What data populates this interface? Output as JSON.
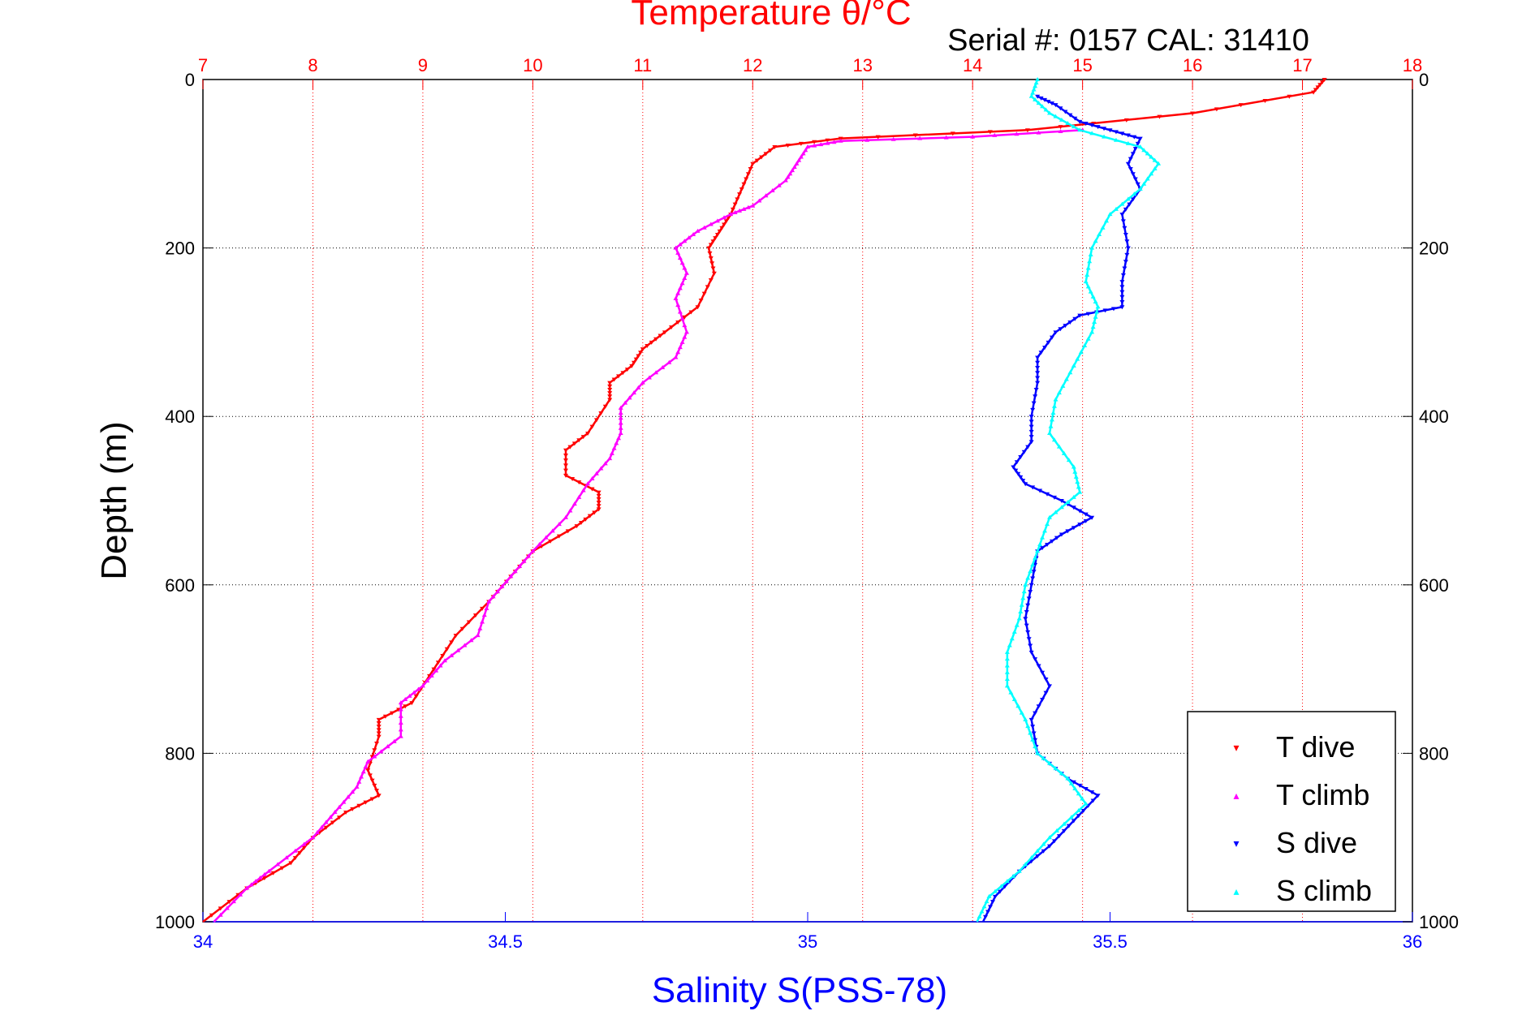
{
  "chart_data": {
    "type": "scatter",
    "title": "Temperature θ/°C",
    "subtitle": "Serial #: 0157  CAL: 31410",
    "ylabel": "Depth (m)",
    "xlabel": "Salinity S(PSS-78)",
    "top_axis": {
      "range": [
        7,
        18
      ],
      "ticks": [
        "7",
        "8",
        "9",
        "10",
        "11",
        "12",
        "13",
        "14",
        "15",
        "16",
        "17",
        "18"
      ],
      "color": "#ff0000"
    },
    "bottom_axis": {
      "range": [
        34,
        36
      ],
      "ticks": [
        "34",
        "34.5",
        "35",
        "35.5",
        "36"
      ],
      "color": "#0000ff"
    },
    "y_axis": {
      "range": [
        0,
        1000
      ],
      "reversed": true,
      "ticks": [
        "0",
        "200",
        "400",
        "600",
        "800",
        "1000"
      ]
    },
    "grid": true,
    "legend_position": "bottom-right",
    "series": [
      {
        "name": "T dive",
        "axis": "temperature",
        "color": "#ff0000",
        "marker": "▾",
        "points": [
          [
            17.2,
            0
          ],
          [
            17.1,
            15
          ],
          [
            16.0,
            40
          ],
          [
            14.5,
            60
          ],
          [
            12.8,
            70
          ],
          [
            12.2,
            80
          ],
          [
            12.0,
            100
          ],
          [
            11.9,
            130
          ],
          [
            11.8,
            160
          ],
          [
            11.7,
            180
          ],
          [
            11.6,
            200
          ],
          [
            11.65,
            230
          ],
          [
            11.5,
            270
          ],
          [
            11.2,
            300
          ],
          [
            11.0,
            320
          ],
          [
            10.9,
            340
          ],
          [
            10.7,
            360
          ],
          [
            10.7,
            380
          ],
          [
            10.5,
            420
          ],
          [
            10.3,
            440
          ],
          [
            10.3,
            470
          ],
          [
            10.6,
            490
          ],
          [
            10.6,
            510
          ],
          [
            10.4,
            530
          ],
          [
            10.0,
            560
          ],
          [
            9.8,
            590
          ],
          [
            9.6,
            620
          ],
          [
            9.3,
            660
          ],
          [
            9.1,
            700
          ],
          [
            8.9,
            740
          ],
          [
            8.6,
            760
          ],
          [
            8.6,
            780
          ],
          [
            8.5,
            820
          ],
          [
            8.6,
            850
          ],
          [
            8.3,
            870
          ],
          [
            8.0,
            900
          ],
          [
            7.8,
            930
          ],
          [
            7.4,
            960
          ],
          [
            7.0,
            1000
          ]
        ]
      },
      {
        "name": "T climb",
        "axis": "temperature",
        "color": "#ff00ff",
        "marker": "▴",
        "points": [
          [
            15.0,
            60
          ],
          [
            14.0,
            68
          ],
          [
            12.8,
            73
          ],
          [
            12.5,
            80
          ],
          [
            12.4,
            100
          ],
          [
            12.3,
            120
          ],
          [
            12.0,
            150
          ],
          [
            11.8,
            160
          ],
          [
            11.5,
            180
          ],
          [
            11.3,
            200
          ],
          [
            11.4,
            230
          ],
          [
            11.3,
            260
          ],
          [
            11.4,
            300
          ],
          [
            11.3,
            330
          ],
          [
            11.0,
            360
          ],
          [
            10.8,
            390
          ],
          [
            10.8,
            420
          ],
          [
            10.7,
            450
          ],
          [
            10.5,
            480
          ],
          [
            10.3,
            520
          ],
          [
            10.0,
            560
          ],
          [
            9.8,
            590
          ],
          [
            9.6,
            620
          ],
          [
            9.5,
            660
          ],
          [
            9.2,
            690
          ],
          [
            9.0,
            720
          ],
          [
            8.8,
            740
          ],
          [
            8.8,
            780
          ],
          [
            8.5,
            810
          ],
          [
            8.4,
            840
          ],
          [
            8.2,
            870
          ],
          [
            8.0,
            900
          ],
          [
            7.6,
            940
          ],
          [
            7.4,
            960
          ],
          [
            7.1,
            1000
          ]
        ]
      },
      {
        "name": "S dive",
        "axis": "salinity",
        "color": "#0000ff",
        "marker": "▾",
        "points": [
          [
            35.38,
            20
          ],
          [
            35.41,
            30
          ],
          [
            35.45,
            50
          ],
          [
            35.5,
            60
          ],
          [
            35.55,
            70
          ],
          [
            35.53,
            100
          ],
          [
            35.55,
            130
          ],
          [
            35.52,
            160
          ],
          [
            35.53,
            200
          ],
          [
            35.52,
            240
          ],
          [
            35.52,
            270
          ],
          [
            35.45,
            280
          ],
          [
            35.41,
            300
          ],
          [
            35.38,
            330
          ],
          [
            35.38,
            360
          ],
          [
            35.37,
            400
          ],
          [
            35.37,
            430
          ],
          [
            35.34,
            460
          ],
          [
            35.36,
            480
          ],
          [
            35.42,
            500
          ],
          [
            35.47,
            520
          ],
          [
            35.42,
            540
          ],
          [
            35.38,
            560
          ],
          [
            35.37,
            600
          ],
          [
            35.36,
            640
          ],
          [
            35.37,
            680
          ],
          [
            35.4,
            720
          ],
          [
            35.37,
            760
          ],
          [
            35.38,
            800
          ],
          [
            35.43,
            830
          ],
          [
            35.48,
            850
          ],
          [
            35.44,
            880
          ],
          [
            35.4,
            910
          ],
          [
            35.35,
            940
          ],
          [
            35.31,
            970
          ],
          [
            35.29,
            1000
          ]
        ]
      },
      {
        "name": "S climb",
        "axis": "salinity",
        "color": "#00ffff",
        "marker": "▴",
        "points": [
          [
            35.38,
            0
          ],
          [
            35.37,
            20
          ],
          [
            35.4,
            40
          ],
          [
            35.45,
            60
          ],
          [
            35.55,
            80
          ],
          [
            35.58,
            100
          ],
          [
            35.55,
            130
          ],
          [
            35.5,
            160
          ],
          [
            35.47,
            200
          ],
          [
            35.46,
            240
          ],
          [
            35.48,
            270
          ],
          [
            35.47,
            300
          ],
          [
            35.44,
            340
          ],
          [
            35.41,
            380
          ],
          [
            35.4,
            420
          ],
          [
            35.44,
            460
          ],
          [
            35.45,
            490
          ],
          [
            35.4,
            520
          ],
          [
            35.38,
            560
          ],
          [
            35.36,
            600
          ],
          [
            35.35,
            640
          ],
          [
            35.33,
            680
          ],
          [
            35.33,
            720
          ],
          [
            35.36,
            760
          ],
          [
            35.38,
            800
          ],
          [
            35.43,
            830
          ],
          [
            35.46,
            860
          ],
          [
            35.4,
            900
          ],
          [
            35.35,
            940
          ],
          [
            35.3,
            970
          ],
          [
            35.28,
            1000
          ]
        ]
      }
    ]
  }
}
